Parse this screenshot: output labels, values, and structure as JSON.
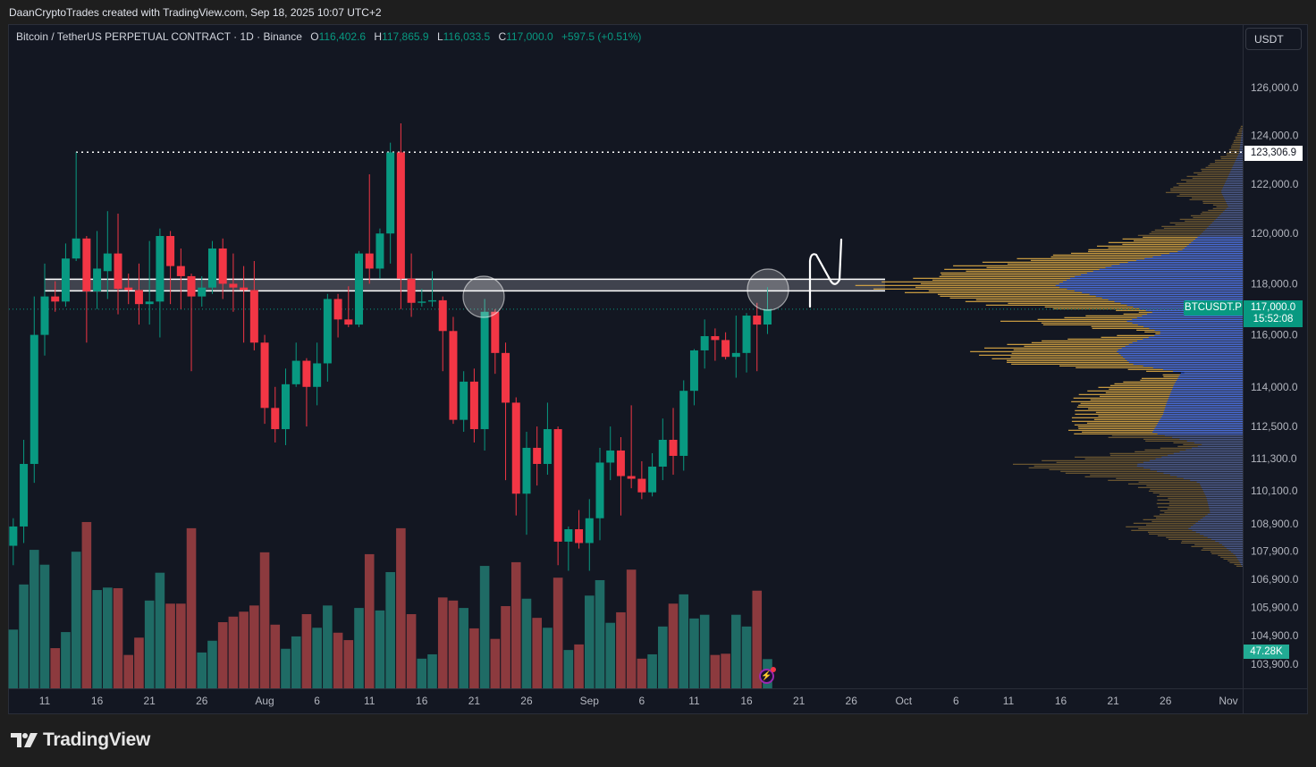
{
  "credit": "DaanCryptoTrades created with TradingView.com, Sep 18, 2025 10:07 UTC+2",
  "legend": {
    "symbol": "Bitcoin / TetherUS PERPETUAL CONTRACT · 1D · Binance",
    "o_label": "O",
    "o": "116,402.6",
    "h_label": "H",
    "h": "117,865.9",
    "l_label": "L",
    "l": "116,033.5",
    "c_label": "C",
    "c": "117,000.0",
    "change": "+597.5 (+0.51%)"
  },
  "currency_button": "USDT",
  "tags": {
    "high_line": "123,306.9",
    "symbol": "BTCUSDT.P",
    "last_price": "117,000.0",
    "countdown": "15:52:08",
    "volume": "47.28K"
  },
  "logo": "TradingView",
  "colors": {
    "up": "#089981",
    "down": "#f23645",
    "volume_up": "#1f6b65",
    "volume_down": "#8c3a3e",
    "background": "#131722",
    "profile_total": "#d9a844",
    "profile_up": "#2962ff"
  },
  "chart_data": {
    "type": "candlestick",
    "symbol": "BTCUSDT.P",
    "interval": "1D",
    "price_scale": "log",
    "grid": false,
    "price_axis": {
      "ticks": [
        "126,000.0",
        "124,000.0",
        "122,000.0",
        "120,000.0",
        "118,000.0",
        "116,000.0",
        "114,000.0",
        "112,500.0",
        "111,300.0",
        "110,100.0",
        "108,900.0",
        "107,900.0",
        "106,900.0",
        "105,900.0",
        "104,900.0",
        "103,900.0"
      ]
    },
    "time_axis": {
      "ticks": [
        {
          "date": "2025-07-11",
          "label": "11"
        },
        {
          "date": "2025-07-16",
          "label": "16"
        },
        {
          "date": "2025-07-21",
          "label": "21"
        },
        {
          "date": "2025-07-26",
          "label": "26"
        },
        {
          "date": "2025-08-01",
          "label": "Aug"
        },
        {
          "date": "2025-08-06",
          "label": "6"
        },
        {
          "date": "2025-08-11",
          "label": "11"
        },
        {
          "date": "2025-08-16",
          "label": "16"
        },
        {
          "date": "2025-08-21",
          "label": "21"
        },
        {
          "date": "2025-08-26",
          "label": "26"
        },
        {
          "date": "2025-09-01",
          "label": "Sep"
        },
        {
          "date": "2025-09-06",
          "label": "6"
        },
        {
          "date": "2025-09-11",
          "label": "11"
        },
        {
          "date": "2025-09-16",
          "label": "16"
        },
        {
          "date": "2025-09-21",
          "label": "21"
        },
        {
          "date": "2025-09-26",
          "label": "26"
        },
        {
          "date": "2025-10-01",
          "label": "Oct"
        },
        {
          "date": "2025-10-06",
          "label": "6"
        },
        {
          "date": "2025-10-11",
          "label": "11"
        },
        {
          "date": "2025-10-16",
          "label": "16"
        },
        {
          "date": "2025-10-21",
          "label": "21"
        },
        {
          "date": "2025-10-26",
          "label": "26"
        },
        {
          "date": "2025-11-01",
          "label": "Nov"
        }
      ]
    },
    "volume_unit": "K",
    "candles": [
      {
        "d": "2025-07-08",
        "o": 108100,
        "h": 109100,
        "l": 107400,
        "c": 108800,
        "v": 95
      },
      {
        "d": "2025-07-09",
        "o": 108800,
        "h": 112000,
        "l": 108200,
        "c": 111100,
        "v": 168
      },
      {
        "d": "2025-07-10",
        "o": 111100,
        "h": 117500,
        "l": 110400,
        "c": 116000,
        "v": 224
      },
      {
        "d": "2025-07-11",
        "o": 116000,
        "h": 118800,
        "l": 115200,
        "c": 117500,
        "v": 200
      },
      {
        "d": "2025-07-12",
        "o": 117500,
        "h": 118100,
        "l": 116900,
        "c": 117300,
        "v": 65
      },
      {
        "d": "2025-07-13",
        "o": 117300,
        "h": 119600,
        "l": 117100,
        "c": 119000,
        "v": 91
      },
      {
        "d": "2025-07-14",
        "o": 119000,
        "h": 123306.9,
        "l": 118900,
        "c": 119800,
        "v": 221
      },
      {
        "d": "2025-07-15",
        "o": 119800,
        "h": 119900,
        "l": 115700,
        "c": 117700,
        "v": 269
      },
      {
        "d": "2025-07-16",
        "o": 117700,
        "h": 120100,
        "l": 117000,
        "c": 118600,
        "v": 159
      },
      {
        "d": "2025-07-17",
        "o": 118500,
        "h": 120900,
        "l": 117400,
        "c": 119200,
        "v": 163
      },
      {
        "d": "2025-07-18",
        "o": 119200,
        "h": 120800,
        "l": 116800,
        "c": 117800,
        "v": 162
      },
      {
        "d": "2025-07-19",
        "o": 117850,
        "h": 118400,
        "l": 117200,
        "c": 117750,
        "v": 54
      },
      {
        "d": "2025-07-20",
        "o": 117750,
        "h": 118800,
        "l": 116400,
        "c": 117200,
        "v": 82
      },
      {
        "d": "2025-07-21",
        "o": 117200,
        "h": 119700,
        "l": 116400,
        "c": 117300,
        "v": 142
      },
      {
        "d": "2025-07-22",
        "o": 117300,
        "h": 120200,
        "l": 115900,
        "c": 119900,
        "v": 187
      },
      {
        "d": "2025-07-23",
        "o": 119900,
        "h": 120100,
        "l": 117200,
        "c": 118700,
        "v": 137
      },
      {
        "d": "2025-07-24",
        "o": 118700,
        "h": 119400,
        "l": 117000,
        "c": 118300,
        "v": 137
      },
      {
        "d": "2025-07-25",
        "o": 118300,
        "h": 118400,
        "l": 114600,
        "c": 117500,
        "v": 259
      },
      {
        "d": "2025-07-26",
        "o": 117500,
        "h": 118300,
        "l": 117100,
        "c": 117850,
        "v": 58
      },
      {
        "d": "2025-07-27",
        "o": 117850,
        "h": 119700,
        "l": 117600,
        "c": 119400,
        "v": 77
      },
      {
        "d": "2025-07-28",
        "o": 119400,
        "h": 119800,
        "l": 117400,
        "c": 118000,
        "v": 107
      },
      {
        "d": "2025-07-29",
        "o": 118000,
        "h": 119200,
        "l": 116900,
        "c": 117850,
        "v": 116
      },
      {
        "d": "2025-07-30",
        "o": 117850,
        "h": 118700,
        "l": 115700,
        "c": 117750,
        "v": 124
      },
      {
        "d": "2025-07-31",
        "o": 117750,
        "h": 118900,
        "l": 115400,
        "c": 115700,
        "v": 134
      },
      {
        "d": "2025-08-01",
        "o": 115700,
        "h": 116000,
        "l": 112600,
        "c": 113200,
        "v": 220
      },
      {
        "d": "2025-08-02",
        "o": 113200,
        "h": 114000,
        "l": 111900,
        "c": 112400,
        "v": 103
      },
      {
        "d": "2025-08-03",
        "o": 112400,
        "h": 114700,
        "l": 111800,
        "c": 114100,
        "v": 64
      },
      {
        "d": "2025-08-04",
        "o": 114100,
        "h": 115700,
        "l": 114000,
        "c": 115000,
        "v": 84
      },
      {
        "d": "2025-08-05",
        "o": 115000,
        "h": 115100,
        "l": 112500,
        "c": 114000,
        "v": 120
      },
      {
        "d": "2025-08-06",
        "o": 114000,
        "h": 115700,
        "l": 113300,
        "c": 114900,
        "v": 98
      },
      {
        "d": "2025-08-07",
        "o": 114900,
        "h": 117600,
        "l": 114200,
        "c": 117400,
        "v": 134
      },
      {
        "d": "2025-08-08",
        "o": 117400,
        "h": 117600,
        "l": 115900,
        "c": 116600,
        "v": 90
      },
      {
        "d": "2025-08-09",
        "o": 116600,
        "h": 117900,
        "l": 116300,
        "c": 116400,
        "v": 78
      },
      {
        "d": "2025-08-10",
        "o": 116400,
        "h": 119300,
        "l": 116300,
        "c": 119200,
        "v": 130
      },
      {
        "d": "2025-08-11",
        "o": 119200,
        "h": 122400,
        "l": 118000,
        "c": 118600,
        "v": 217
      },
      {
        "d": "2025-08-12",
        "o": 118600,
        "h": 120200,
        "l": 118200,
        "c": 120000,
        "v": 126
      },
      {
        "d": "2025-08-13",
        "o": 120000,
        "h": 123700,
        "l": 118800,
        "c": 123300,
        "v": 188
      },
      {
        "d": "2025-08-14",
        "o": 123300,
        "h": 124500,
        "l": 117000,
        "c": 118200,
        "v": 259
      },
      {
        "d": "2025-08-15",
        "o": 118200,
        "h": 119200,
        "l": 116700,
        "c": 117250,
        "v": 120
      },
      {
        "d": "2025-08-16",
        "o": 117250,
        "h": 117800,
        "l": 117100,
        "c": 117300,
        "v": 48
      },
      {
        "d": "2025-08-17",
        "o": 117300,
        "h": 118500,
        "l": 117100,
        "c": 117350,
        "v": 55
      },
      {
        "d": "2025-08-18",
        "o": 117350,
        "h": 117500,
        "l": 114600,
        "c": 116150,
        "v": 147
      },
      {
        "d": "2025-08-19",
        "o": 116150,
        "h": 116700,
        "l": 112600,
        "c": 112750,
        "v": 142
      },
      {
        "d": "2025-08-20",
        "o": 112750,
        "h": 114600,
        "l": 112300,
        "c": 114200,
        "v": 130
      },
      {
        "d": "2025-08-21",
        "o": 114200,
        "h": 114700,
        "l": 111900,
        "c": 112400,
        "v": 97
      },
      {
        "d": "2025-08-22",
        "o": 112400,
        "h": 117400,
        "l": 111600,
        "c": 116900,
        "v": 198
      },
      {
        "d": "2025-08-23",
        "o": 116900,
        "h": 117000,
        "l": 114500,
        "c": 115300,
        "v": 80
      },
      {
        "d": "2025-08-24",
        "o": 115300,
        "h": 115700,
        "l": 110500,
        "c": 113400,
        "v": 133
      },
      {
        "d": "2025-08-25",
        "o": 113400,
        "h": 113600,
        "l": 109200,
        "c": 110000,
        "v": 204
      },
      {
        "d": "2025-08-26",
        "o": 110000,
        "h": 112300,
        "l": 108500,
        "c": 111700,
        "v": 145
      },
      {
        "d": "2025-08-27",
        "o": 111700,
        "h": 112500,
        "l": 110300,
        "c": 111100,
        "v": 114
      },
      {
        "d": "2025-08-28",
        "o": 111100,
        "h": 113400,
        "l": 110700,
        "c": 112400,
        "v": 98
      },
      {
        "d": "2025-08-29",
        "o": 112400,
        "h": 112500,
        "l": 107400,
        "c": 108250,
        "v": 179
      },
      {
        "d": "2025-08-30",
        "o": 108250,
        "h": 108800,
        "l": 107200,
        "c": 108700,
        "v": 62
      },
      {
        "d": "2025-08-31",
        "o": 108700,
        "h": 109400,
        "l": 108000,
        "c": 108200,
        "v": 71
      },
      {
        "d": "2025-09-01",
        "o": 108200,
        "h": 109800,
        "l": 107200,
        "c": 109100,
        "v": 150
      },
      {
        "d": "2025-09-02",
        "o": 109100,
        "h": 111700,
        "l": 108300,
        "c": 111150,
        "v": 175
      },
      {
        "d": "2025-09-03",
        "o": 111150,
        "h": 112500,
        "l": 110500,
        "c": 111600,
        "v": 106
      },
      {
        "d": "2025-09-04",
        "o": 111600,
        "h": 112100,
        "l": 109200,
        "c": 110650,
        "v": 123
      },
      {
        "d": "2025-09-05",
        "o": 110650,
        "h": 113300,
        "l": 110200,
        "c": 110550,
        "v": 192
      },
      {
        "d": "2025-09-06",
        "o": 110550,
        "h": 111200,
        "l": 109800,
        "c": 110050,
        "v": 48
      },
      {
        "d": "2025-09-07",
        "o": 110050,
        "h": 111500,
        "l": 109900,
        "c": 111000,
        "v": 55
      },
      {
        "d": "2025-09-08",
        "o": 111000,
        "h": 112800,
        "l": 110500,
        "c": 112000,
        "v": 100
      },
      {
        "d": "2025-09-09",
        "o": 112000,
        "h": 113200,
        "l": 110700,
        "c": 111400,
        "v": 137
      },
      {
        "d": "2025-09-10",
        "o": 111400,
        "h": 114250,
        "l": 110850,
        "c": 113850,
        "v": 152
      },
      {
        "d": "2025-09-11",
        "o": 113850,
        "h": 115450,
        "l": 113300,
        "c": 115400,
        "v": 113
      },
      {
        "d": "2025-09-12",
        "o": 115400,
        "h": 116600,
        "l": 114700,
        "c": 115950,
        "v": 119
      },
      {
        "d": "2025-09-13",
        "o": 115950,
        "h": 116250,
        "l": 115000,
        "c": 115800,
        "v": 54
      },
      {
        "d": "2025-09-14",
        "o": 115800,
        "h": 116100,
        "l": 115050,
        "c": 115150,
        "v": 56
      },
      {
        "d": "2025-09-15",
        "o": 115150,
        "h": 116750,
        "l": 114350,
        "c": 115300,
        "v": 119
      },
      {
        "d": "2025-09-16",
        "o": 115300,
        "h": 116850,
        "l": 114550,
        "c": 116750,
        "v": 100
      },
      {
        "d": "2025-09-17",
        "o": 116750,
        "h": 117250,
        "l": 114600,
        "c": 116400,
        "v": 158
      },
      {
        "d": "2025-09-18",
        "o": 116402.6,
        "h": 117865.9,
        "l": 116033.5,
        "c": 117000.0,
        "v": 47.28
      }
    ],
    "horizontal_line": 123306.9,
    "last_price": 117000.0,
    "zone": [
      117720,
      118180
    ],
    "marked_candles": [
      "2025-08-22",
      "2025-09-18"
    ],
    "volume_profile": {
      "value_area": [
        112200,
        119900
      ],
      "levels": [
        {
          "p": 124400,
          "total": 0.005,
          "up": 0
        },
        {
          "p": 123300,
          "total": 0.04,
          "up": 0.01
        },
        {
          "p": 121710,
          "total": 0.21,
          "up": 0.06
        },
        {
          "p": 121100,
          "total": 0.07,
          "up": 0.04
        },
        {
          "p": 119930,
          "total": 0.28,
          "up": 0.12
        },
        {
          "p": 119330,
          "total": 0.42,
          "up": 0.17
        },
        {
          "p": 118740,
          "total": 0.74,
          "up": 0.36
        },
        {
          "p": 118280,
          "total": 0.86,
          "up": 0.47
        },
        {
          "p": 117930,
          "total": 1.0,
          "up": 0.52
        },
        {
          "p": 117590,
          "total": 0.86,
          "up": 0.42
        },
        {
          "p": 117140,
          "total": 0.64,
          "up": 0.31
        },
        {
          "p": 116900,
          "total": 0.27,
          "up": 0.25
        },
        {
          "p": 116550,
          "total": 0.65,
          "up": 0.32
        },
        {
          "p": 116100,
          "total": 0.22,
          "up": 0.22
        },
        {
          "p": 115750,
          "total": 0.59,
          "up": 0.3
        },
        {
          "p": 115400,
          "total": 0.7,
          "up": 0.35
        },
        {
          "p": 114910,
          "total": 0.65,
          "up": 0.31
        },
        {
          "p": 114560,
          "total": 0.17,
          "up": 0.17
        },
        {
          "p": 114100,
          "total": 0.37,
          "up": 0.19
        },
        {
          "p": 113420,
          "total": 0.46,
          "up": 0.21
        },
        {
          "p": 112980,
          "total": 0.43,
          "up": 0.22
        },
        {
          "p": 112290,
          "total": 0.47,
          "up": 0.25
        },
        {
          "p": 111830,
          "total": 0.15,
          "up": 0.11
        },
        {
          "p": 111070,
          "total": 0.62,
          "up": 0.3
        },
        {
          "p": 110420,
          "total": 0.3,
          "up": 0.12
        },
        {
          "p": 109870,
          "total": 0.22,
          "up": 0.1
        },
        {
          "p": 109330,
          "total": 0.22,
          "up": 0.09
        },
        {
          "p": 108740,
          "total": 0.31,
          "up": 0.15
        },
        {
          "p": 108190,
          "total": 0.15,
          "up": 0.06
        },
        {
          "p": 107770,
          "total": 0.07,
          "up": 0.02
        },
        {
          "p": 107340,
          "total": 0.01,
          "up": 0
        }
      ]
    }
  }
}
